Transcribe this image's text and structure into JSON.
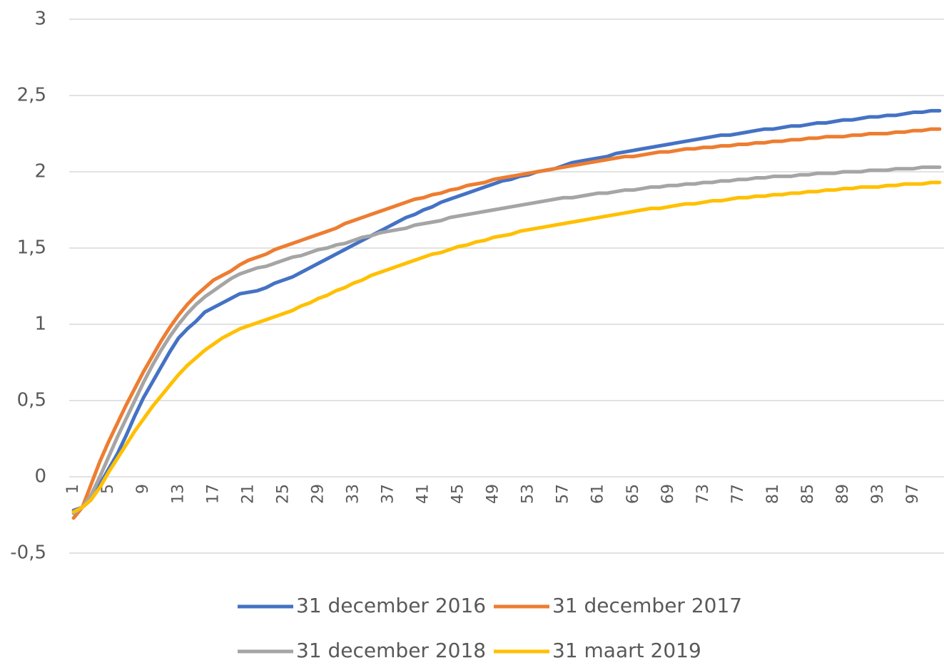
{
  "chart_data": {
    "type": "line",
    "categories": [
      1,
      null,
      null,
      null,
      5,
      null,
      null,
      null,
      9,
      null,
      null,
      null,
      13,
      null,
      null,
      null,
      17,
      null,
      null,
      null,
      21,
      null,
      null,
      null,
      25,
      null,
      null,
      null,
      29,
      null,
      null,
      null,
      33,
      null,
      null,
      null,
      37,
      null,
      null,
      null,
      41,
      null,
      null,
      null,
      45,
      null,
      null,
      null,
      49,
      null,
      null,
      null,
      53,
      null,
      null,
      null,
      57,
      null,
      null,
      null,
      61,
      null,
      null,
      null,
      65,
      null,
      null,
      null,
      69,
      null,
      null,
      null,
      73,
      null,
      null,
      null,
      77,
      null,
      null,
      null,
      81,
      null,
      null,
      null,
      85,
      null,
      null,
      null,
      89,
      null,
      null,
      null,
      93,
      null,
      null,
      null,
      97,
      null,
      null,
      null
    ],
    "ylim": [
      -0.5,
      3
    ],
    "yticks": [
      {
        "value": -0.5,
        "label": "-0,5"
      },
      0,
      {
        "value": 0.5,
        "label": "0,5"
      },
      1,
      {
        "value": 1.5,
        "label": "1,5"
      },
      2,
      {
        "value": 2.5,
        "label": "2,5"
      },
      3
    ],
    "grid": true,
    "legend": "bottom",
    "series": [
      {
        "name": "31 december 2016",
        "color": "#4472c4",
        "values": [
          -0.22,
          -0.2,
          -0.15,
          -0.05,
          0.05,
          0.15,
          0.27,
          0.4,
          0.52,
          0.62,
          0.72,
          0.82,
          0.91,
          0.97,
          1.02,
          1.08,
          1.11,
          1.14,
          1.17,
          1.2,
          1.21,
          1.22,
          1.24,
          1.27,
          1.29,
          1.31,
          1.34,
          1.37,
          1.4,
          1.43,
          1.46,
          1.49,
          1.52,
          1.55,
          1.58,
          1.61,
          1.64,
          1.67,
          1.7,
          1.72,
          1.75,
          1.77,
          1.8,
          1.82,
          1.84,
          1.86,
          1.88,
          1.9,
          1.92,
          1.94,
          1.95,
          1.97,
          1.98,
          2.0,
          2.01,
          2.02,
          2.04,
          2.06,
          2.07,
          2.08,
          2.09,
          2.1,
          2.12,
          2.13,
          2.14,
          2.15,
          2.16,
          2.17,
          2.18,
          2.19,
          2.2,
          2.21,
          2.22,
          2.23,
          2.24,
          2.24,
          2.25,
          2.26,
          2.27,
          2.28,
          2.28,
          2.29,
          2.3,
          2.3,
          2.31,
          2.32,
          2.32,
          2.33,
          2.34,
          2.34,
          2.35,
          2.36,
          2.36,
          2.37,
          2.37,
          2.38,
          2.39,
          2.39,
          2.4,
          2.4
        ]
      },
      {
        "name": "31 december 2017",
        "color": "#ed7d31",
        "values": [
          -0.27,
          -0.2,
          -0.05,
          0.1,
          0.23,
          0.35,
          0.47,
          0.58,
          0.69,
          0.79,
          0.89,
          0.98,
          1.06,
          1.13,
          1.19,
          1.24,
          1.29,
          1.32,
          1.35,
          1.39,
          1.42,
          1.44,
          1.46,
          1.49,
          1.51,
          1.53,
          1.55,
          1.57,
          1.59,
          1.61,
          1.63,
          1.66,
          1.68,
          1.7,
          1.72,
          1.74,
          1.76,
          1.78,
          1.8,
          1.82,
          1.83,
          1.85,
          1.86,
          1.88,
          1.89,
          1.91,
          1.92,
          1.93,
          1.95,
          1.96,
          1.97,
          1.98,
          1.99,
          2.0,
          2.01,
          2.02,
          2.03,
          2.04,
          2.05,
          2.06,
          2.07,
          2.08,
          2.09,
          2.1,
          2.1,
          2.11,
          2.12,
          2.13,
          2.13,
          2.14,
          2.15,
          2.15,
          2.16,
          2.16,
          2.17,
          2.17,
          2.18,
          2.18,
          2.19,
          2.19,
          2.2,
          2.2,
          2.21,
          2.21,
          2.22,
          2.22,
          2.23,
          2.23,
          2.23,
          2.24,
          2.24,
          2.25,
          2.25,
          2.25,
          2.26,
          2.26,
          2.27,
          2.27,
          2.28,
          2.28
        ]
      },
      {
        "name": "31 december 2018",
        "color": "#a5a5a5",
        "values": [
          -0.24,
          -0.2,
          -0.12,
          0.0,
          0.13,
          0.26,
          0.38,
          0.5,
          0.62,
          0.73,
          0.83,
          0.92,
          1.0,
          1.07,
          1.13,
          1.18,
          1.22,
          1.26,
          1.3,
          1.33,
          1.35,
          1.37,
          1.38,
          1.4,
          1.42,
          1.44,
          1.45,
          1.47,
          1.49,
          1.5,
          1.52,
          1.53,
          1.55,
          1.57,
          1.58,
          1.6,
          1.61,
          1.62,
          1.63,
          1.65,
          1.66,
          1.67,
          1.68,
          1.7,
          1.71,
          1.72,
          1.73,
          1.74,
          1.75,
          1.76,
          1.77,
          1.78,
          1.79,
          1.8,
          1.81,
          1.82,
          1.83,
          1.83,
          1.84,
          1.85,
          1.86,
          1.86,
          1.87,
          1.88,
          1.88,
          1.89,
          1.9,
          1.9,
          1.91,
          1.91,
          1.92,
          1.92,
          1.93,
          1.93,
          1.94,
          1.94,
          1.95,
          1.95,
          1.96,
          1.96,
          1.97,
          1.97,
          1.97,
          1.98,
          1.98,
          1.99,
          1.99,
          1.99,
          2.0,
          2.0,
          2.0,
          2.01,
          2.01,
          2.01,
          2.02,
          2.02,
          2.02,
          2.03,
          2.03,
          2.03
        ]
      },
      {
        "name": "31 maart 2019",
        "color": "#ffc000",
        "values": [
          -0.23,
          -0.2,
          -0.15,
          -0.07,
          0.03,
          0.12,
          0.21,
          0.3,
          0.38,
          0.46,
          0.53,
          0.6,
          0.67,
          0.73,
          0.78,
          0.83,
          0.87,
          0.91,
          0.94,
          0.97,
          0.99,
          1.01,
          1.03,
          1.05,
          1.07,
          1.09,
          1.12,
          1.14,
          1.17,
          1.19,
          1.22,
          1.24,
          1.27,
          1.29,
          1.32,
          1.34,
          1.36,
          1.38,
          1.4,
          1.42,
          1.44,
          1.46,
          1.47,
          1.49,
          1.51,
          1.52,
          1.54,
          1.55,
          1.57,
          1.58,
          1.59,
          1.61,
          1.62,
          1.63,
          1.64,
          1.65,
          1.66,
          1.67,
          1.68,
          1.69,
          1.7,
          1.71,
          1.72,
          1.73,
          1.74,
          1.75,
          1.76,
          1.76,
          1.77,
          1.78,
          1.79,
          1.79,
          1.8,
          1.81,
          1.81,
          1.82,
          1.83,
          1.83,
          1.84,
          1.84,
          1.85,
          1.85,
          1.86,
          1.86,
          1.87,
          1.87,
          1.88,
          1.88,
          1.89,
          1.89,
          1.9,
          1.9,
          1.9,
          1.91,
          1.91,
          1.92,
          1.92,
          1.92,
          1.93,
          1.93
        ]
      }
    ]
  }
}
